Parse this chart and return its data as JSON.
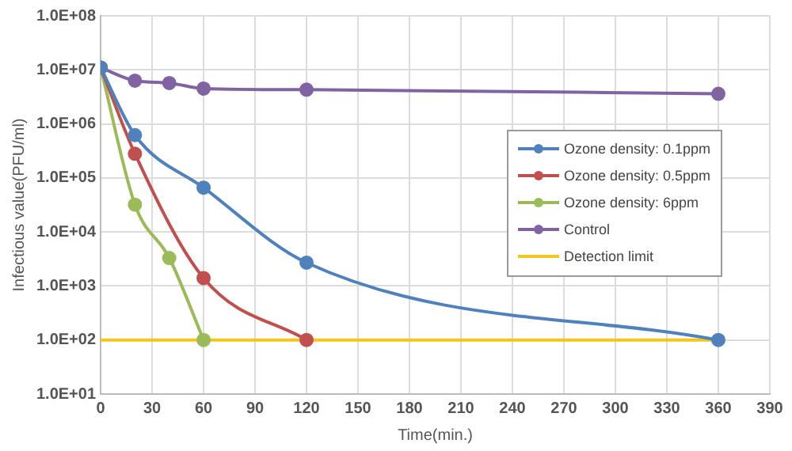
{
  "chart_data": {
    "type": "line",
    "xlabel": "Time(min.)",
    "ylabel": "Infectious value(PFU/ml)",
    "series": [
      {
        "name": "Ozone density: 0.1ppm",
        "color": "#4f81bd",
        "x": [
          0,
          20,
          60,
          120,
          360
        ],
        "values": [
          11000000,
          620000,
          66000,
          2700,
          100
        ]
      },
      {
        "name": "Ozone density: 0.5ppm",
        "color": "#c0504d",
        "x": [
          0,
          20,
          60,
          120
        ],
        "values": [
          11000000,
          280000,
          1400,
          100
        ]
      },
      {
        "name": "Ozone density: 6ppm",
        "color": "#9bbb59",
        "x": [
          0,
          20,
          40,
          60
        ],
        "values": [
          11000000,
          32000,
          3300,
          100
        ]
      },
      {
        "name": "Control",
        "color": "#8064a2",
        "x": [
          0,
          20,
          40,
          60,
          120,
          360
        ],
        "values": [
          11000000,
          6300000,
          5700000,
          4500000,
          4300000,
          3600000
        ]
      },
      {
        "name": "Detection limit",
        "color": "#f5c518",
        "x": [
          0,
          360
        ],
        "values": [
          100,
          100
        ],
        "marker": "none"
      }
    ],
    "log": "y",
    "xlim": [
      0,
      390
    ],
    "xticks": [
      0,
      30,
      60,
      90,
      120,
      150,
      180,
      210,
      240,
      270,
      300,
      330,
      360,
      390
    ],
    "ylim": [
      10,
      100000000
    ],
    "yticks": [
      {
        "value": 10,
        "label": "1.0E+01"
      },
      {
        "value": 100,
        "label": "1.0E+02"
      },
      {
        "value": 1000,
        "label": "1.0E+03"
      },
      {
        "value": 10000,
        "label": "1.0E+04"
      },
      {
        "value": 100000,
        "label": "1.0E+05"
      },
      {
        "value": 1000000,
        "label": "1.0E+06"
      },
      {
        "value": 10000000,
        "label": "1.0E+07"
      },
      {
        "value": 100000000,
        "label": "1.0E+08"
      }
    ],
    "grid": true,
    "legend": "right",
    "marker": "circle",
    "line_style": "solid"
  }
}
